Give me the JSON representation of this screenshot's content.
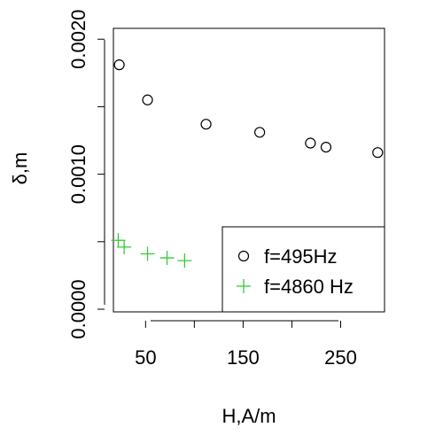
{
  "chart_data": {
    "type": "scatter",
    "title": "",
    "xlabel": "H,A/m",
    "ylabel": "δ,m",
    "xlim": [
      17,
      295
    ],
    "ylim": [
      0,
      0.0021
    ],
    "x_ticks": [
      50,
      150,
      250
    ],
    "x_tick_labels": [
      "50",
      "150",
      "250"
    ],
    "y_ticks": [
      0,
      0.001,
      0.002
    ],
    "y_tick_labels": [
      "0.0000",
      "0.0010",
      "0.0020"
    ],
    "grid": false,
    "legend_position": "bottom-right",
    "series": [
      {
        "name": "f=495Hz",
        "marker": "open-circle",
        "color": "#000000",
        "x": [
          23,
          52,
          112,
          167,
          219,
          235,
          288
        ],
        "y": [
          0.00183,
          0.00157,
          0.00139,
          0.00133,
          0.00125,
          0.00122,
          0.00118
        ]
      },
      {
        "name": "f=4860 Hz",
        "marker": "plus",
        "color": "#33cc33",
        "x": [
          22,
          28,
          52,
          72,
          90
        ],
        "y": [
          0.00053,
          0.00048,
          0.00043,
          0.0004,
          0.00038
        ]
      }
    ]
  }
}
